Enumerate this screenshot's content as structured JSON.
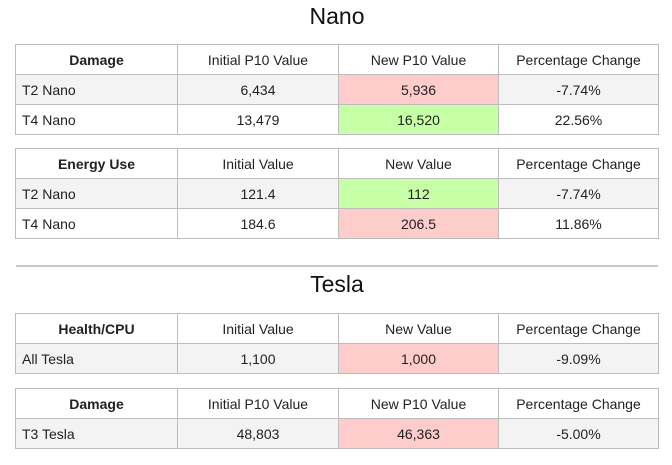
{
  "colors": {
    "increase_bad": "#ffcccc",
    "increase_good": "#c6ffa6",
    "border": "#bdbdbd",
    "row_alt": "#f3f3f3"
  },
  "sections": [
    {
      "title": "Nano",
      "tables": [
        {
          "headers": [
            "Damage",
            "Initial P10 Value",
            "New P10 Value",
            "Percentage Change"
          ],
          "rows": [
            {
              "label": "T2 Nano",
              "initial": "6,434",
              "new": "5,936",
              "change": "-7.74%",
              "highlight": "red"
            },
            {
              "label": "T4 Nano",
              "initial": "13,479",
              "new": "16,520",
              "change": "22.56%",
              "highlight": "green"
            }
          ]
        },
        {
          "headers": [
            "Energy Use",
            "Initial Value",
            "New Value",
            "Percentage Change"
          ],
          "rows": [
            {
              "label": "T2 Nano",
              "initial": "121.4",
              "new": "112",
              "change": "-7.74%",
              "highlight": "green"
            },
            {
              "label": "T4 Nano",
              "initial": "184.6",
              "new": "206.5",
              "change": "11.86%",
              "highlight": "red"
            }
          ]
        }
      ]
    },
    {
      "title": "Tesla",
      "tables": [
        {
          "headers": [
            "Health/CPU",
            "Initial Value",
            "New Value",
            "Percentage Change"
          ],
          "rows": [
            {
              "label": "All Tesla",
              "initial": "1,100",
              "new": "1,000",
              "change": "-9.09%",
              "highlight": "red"
            }
          ]
        },
        {
          "headers": [
            "Damage",
            "Initial P10 Value",
            "New P10 Value",
            "Percentage Change"
          ],
          "rows": [
            {
              "label": "T3 Tesla",
              "initial": "48,803",
              "new": "46,363",
              "change": "-5.00%",
              "highlight": "red"
            }
          ]
        }
      ]
    }
  ]
}
